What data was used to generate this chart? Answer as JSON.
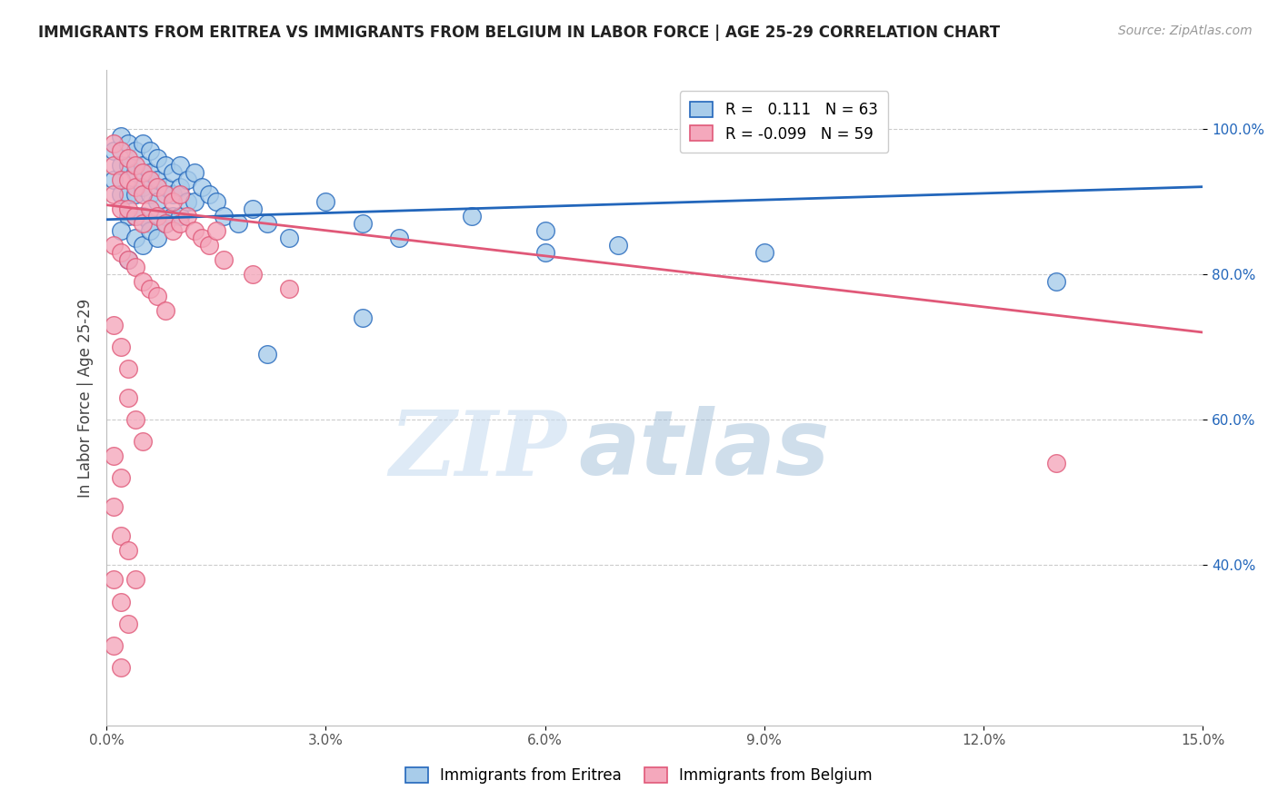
{
  "title": "IMMIGRANTS FROM ERITREA VS IMMIGRANTS FROM BELGIUM IN LABOR FORCE | AGE 25-29 CORRELATION CHART",
  "source": "Source: ZipAtlas.com",
  "ylabel": "In Labor Force | Age 25-29",
  "x_label_blue": "Immigrants from Eritrea",
  "x_label_pink": "Immigrants from Belgium",
  "xlim": [
    0.0,
    0.15
  ],
  "ylim": [
    0.18,
    1.08
  ],
  "xtick_labels": [
    "0.0%",
    "3.0%",
    "6.0%",
    "9.0%",
    "12.0%",
    "15.0%"
  ],
  "xtick_vals": [
    0.0,
    0.03,
    0.06,
    0.09,
    0.12,
    0.15
  ],
  "ytick_labels": [
    "40.0%",
    "60.0%",
    "80.0%",
    "100.0%"
  ],
  "ytick_vals": [
    0.4,
    0.6,
    0.8,
    1.0
  ],
  "blue_R": 0.111,
  "blue_N": 63,
  "pink_R": -0.099,
  "pink_N": 59,
  "blue_color": "#A8CCEA",
  "pink_color": "#F4A8BC",
  "blue_line_color": "#2266BB",
  "pink_line_color": "#E05878",
  "watermark_zip": "ZIP",
  "watermark_atlas": "atlas",
  "grid_color": "#CCCCCC",
  "blue_scatter_x": [
    0.001,
    0.001,
    0.002,
    0.002,
    0.002,
    0.003,
    0.003,
    0.003,
    0.003,
    0.004,
    0.004,
    0.004,
    0.004,
    0.005,
    0.005,
    0.005,
    0.005,
    0.006,
    0.006,
    0.006,
    0.006,
    0.007,
    0.007,
    0.007,
    0.008,
    0.008,
    0.008,
    0.009,
    0.009,
    0.009,
    0.01,
    0.01,
    0.01,
    0.011,
    0.011,
    0.012,
    0.012,
    0.013,
    0.014,
    0.015,
    0.016,
    0.018,
    0.02,
    0.022,
    0.025,
    0.03,
    0.035,
    0.04,
    0.05,
    0.06,
    0.07,
    0.09,
    0.13,
    0.002,
    0.003,
    0.004,
    0.005,
    0.006,
    0.007,
    0.008,
    0.022,
    0.035,
    0.06
  ],
  "blue_scatter_y": [
    0.97,
    0.93,
    0.99,
    0.95,
    0.91,
    0.98,
    0.95,
    0.91,
    0.88,
    0.97,
    0.94,
    0.91,
    0.88,
    0.98,
    0.95,
    0.92,
    0.88,
    0.97,
    0.94,
    0.91,
    0.87,
    0.96,
    0.93,
    0.9,
    0.95,
    0.92,
    0.88,
    0.94,
    0.91,
    0.88,
    0.95,
    0.92,
    0.88,
    0.93,
    0.9,
    0.94,
    0.9,
    0.92,
    0.91,
    0.9,
    0.88,
    0.87,
    0.89,
    0.87,
    0.85,
    0.9,
    0.87,
    0.85,
    0.88,
    0.86,
    0.84,
    0.83,
    0.79,
    0.86,
    0.82,
    0.85,
    0.84,
    0.86,
    0.85,
    0.87,
    0.69,
    0.74,
    0.83
  ],
  "pink_scatter_x": [
    0.001,
    0.001,
    0.001,
    0.002,
    0.002,
    0.002,
    0.003,
    0.003,
    0.003,
    0.004,
    0.004,
    0.004,
    0.005,
    0.005,
    0.005,
    0.006,
    0.006,
    0.007,
    0.007,
    0.008,
    0.008,
    0.009,
    0.009,
    0.01,
    0.01,
    0.011,
    0.012,
    0.013,
    0.014,
    0.015,
    0.016,
    0.02,
    0.025,
    0.001,
    0.002,
    0.003,
    0.004,
    0.005,
    0.006,
    0.007,
    0.008,
    0.002,
    0.003,
    0.003,
    0.004,
    0.005,
    0.001,
    0.002,
    0.001,
    0.002,
    0.003,
    0.004,
    0.001,
    0.002,
    0.003,
    0.001,
    0.002,
    0.13,
    0.001
  ],
  "pink_scatter_y": [
    0.98,
    0.95,
    0.91,
    0.97,
    0.93,
    0.89,
    0.96,
    0.93,
    0.89,
    0.95,
    0.92,
    0.88,
    0.94,
    0.91,
    0.87,
    0.93,
    0.89,
    0.92,
    0.88,
    0.91,
    0.87,
    0.9,
    0.86,
    0.91,
    0.87,
    0.88,
    0.86,
    0.85,
    0.84,
    0.86,
    0.82,
    0.8,
    0.78,
    0.84,
    0.83,
    0.82,
    0.81,
    0.79,
    0.78,
    0.77,
    0.75,
    0.7,
    0.67,
    0.63,
    0.6,
    0.57,
    0.55,
    0.52,
    0.48,
    0.44,
    0.42,
    0.38,
    0.38,
    0.35,
    0.32,
    0.29,
    0.26,
    0.54,
    0.73
  ]
}
